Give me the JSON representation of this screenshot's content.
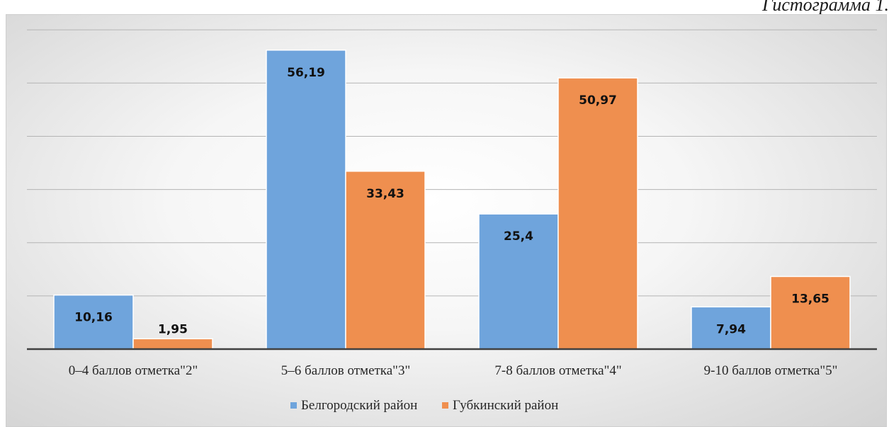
{
  "caption": "Гистограмма 1.",
  "chart_data": {
    "type": "bar",
    "title": "",
    "xlabel": "",
    "ylabel": "",
    "categories": [
      "0–4 баллов отметка\"2\"",
      "5–6 баллов отметка\"3\"",
      "7-8 баллов отметка\"4\"",
      "9-10 баллов отметка\"5\""
    ],
    "series": [
      {
        "name": "Белгородский район",
        "values": [
          10.16,
          56.19,
          25.4,
          7.94
        ],
        "labels": [
          "10,16",
          "56,19",
          "25,4",
          "7,94"
        ],
        "color": "#6fa4dc"
      },
      {
        "name": "Губкинский район",
        "values": [
          1.95,
          33.43,
          50.97,
          13.65
        ],
        "labels": [
          "1,95",
          "33,43",
          "50,97",
          "13,65"
        ],
        "color": "#ef8f4f"
      }
    ],
    "ylim": [
      0,
      60
    ],
    "grid": true,
    "legend": "bottom"
  }
}
